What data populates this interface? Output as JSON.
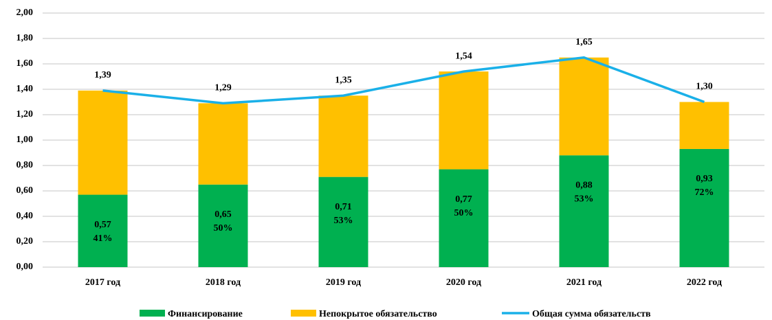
{
  "chart_data": {
    "type": "stacked_bar_line",
    "categories": [
      "2017 год",
      "2018 год",
      "2019 год",
      "2020 год",
      "2021 год",
      "2022 год"
    ],
    "series": [
      {
        "name": "Финансирование",
        "color": "#00b050",
        "type": "bar",
        "values": [
          0.57,
          0.65,
          0.71,
          0.77,
          0.88,
          0.93
        ],
        "value_labels": [
          "0,57",
          "0,65",
          "0,71",
          "0,77",
          "0,88",
          "0,93"
        ],
        "percent_labels": [
          "41%",
          "50%",
          "53%",
          "50%",
          "53%",
          "72%"
        ]
      },
      {
        "name": "Непокрытое обязательство",
        "color": "#ffc000",
        "type": "bar",
        "values": [
          0.82,
          0.64,
          0.64,
          0.77,
          0.77,
          0.37
        ]
      },
      {
        "name": "Общая сумма обязательств",
        "color": "#1ab0e8",
        "type": "line",
        "values": [
          1.39,
          1.29,
          1.35,
          1.54,
          1.65,
          1.3
        ],
        "value_labels": [
          "1,39",
          "1,29",
          "1,35",
          "1,54",
          "1,65",
          "1,30"
        ]
      }
    ],
    "ylim": [
      0,
      2
    ],
    "yticks": [
      {
        "value": 0,
        "label": "0,00"
      },
      {
        "value": 0.2,
        "label": "0,20"
      },
      {
        "value": 0.4,
        "label": "0,40"
      },
      {
        "value": 0.6,
        "label": "0,60"
      },
      {
        "value": 0.8,
        "label": "0,80"
      },
      {
        "value": 1,
        "label": "1,00"
      },
      {
        "value": 1.2,
        "label": "1,20"
      },
      {
        "value": 1.4,
        "label": "1,40"
      },
      {
        "value": 1.6,
        "label": "1,60"
      },
      {
        "value": 1.8,
        "label": "1,80"
      },
      {
        "value": 2,
        "label": "2,00"
      }
    ],
    "grid": true,
    "legend": "bottom"
  }
}
